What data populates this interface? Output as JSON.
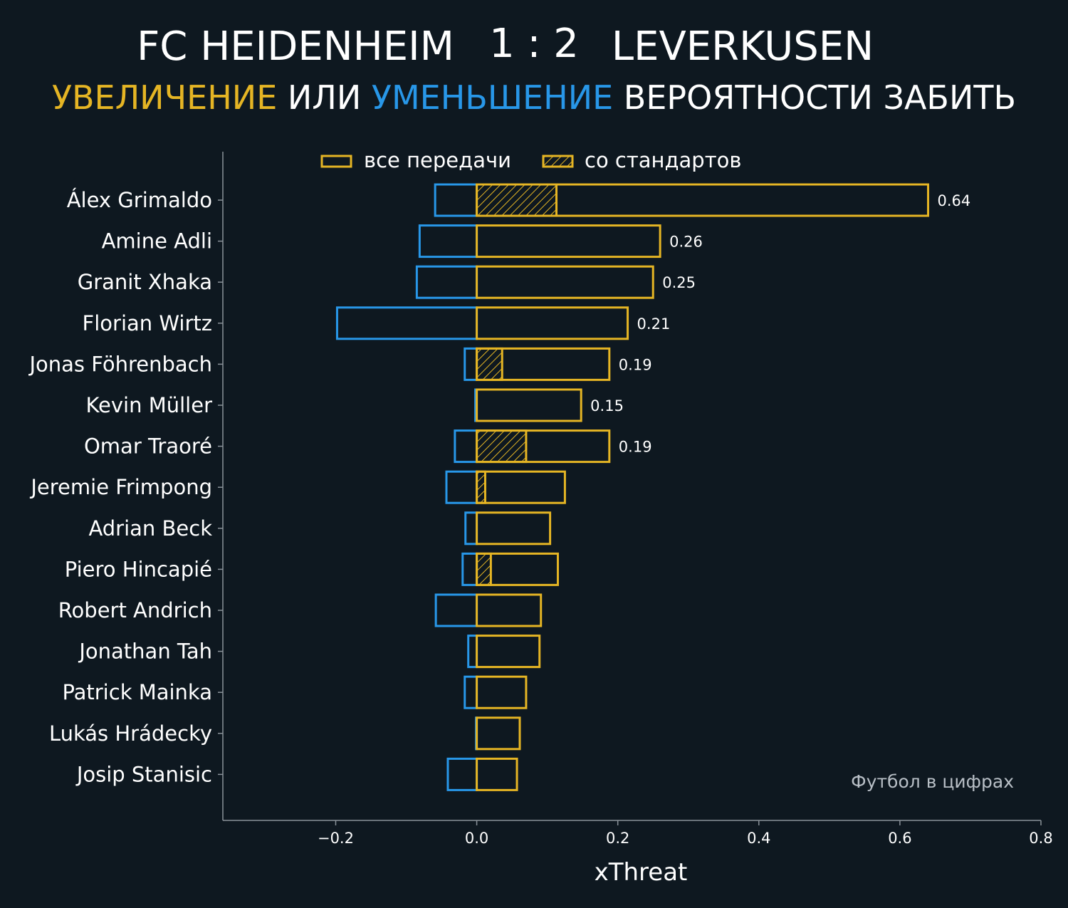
{
  "title": {
    "home": "FC HEIDENHEIM",
    "score": "1 : 2",
    "away": "LEVERKUSEN"
  },
  "subtitle": {
    "part1": "УВЕЛИЧЕНИЕ",
    "part2": " ИЛИ ",
    "part3": "УМЕНЬШЕНИЕ",
    "part4": " ВЕРОЯТНОСТИ ЗАБИТЬ"
  },
  "credit": "Футбол в цифрах",
  "colors": {
    "background": "#0e1820",
    "positive": "#e5b524",
    "negative": "#2897e8",
    "axis": "#8a9299",
    "text": "#ffffff"
  },
  "chart_data": {
    "type": "bar",
    "orientation": "horizontal",
    "xlabel": "xThreat",
    "xlim": [
      -0.36,
      0.8
    ],
    "xticks": [
      -0.2,
      0.0,
      0.2,
      0.4,
      0.6,
      0.8
    ],
    "xtick_labels": [
      "−0.2",
      "0.0",
      "0.2",
      "0.4",
      "0.6",
      "0.8"
    ],
    "legend": {
      "placement": "top",
      "items": [
        {
          "label": "все передачи",
          "style": "outline"
        },
        {
          "label": "со стандартов",
          "style": "hatched"
        }
      ]
    },
    "categories": [
      "Álex Grimaldo",
      "Amine Adli",
      "Granit Xhaka",
      "Florian Wirtz",
      "Jonas Föhrenbach",
      "Kevin Müller",
      "Omar Traoré",
      "Jeremie Frimpong",
      "Adrian Beck",
      "Piero Hincapié",
      "Robert Andrich",
      "Jonathan Tah",
      "Patrick Mainka",
      "Lukás Hrádecky",
      "Josip Stanisic"
    ],
    "series": [
      {
        "name": "все передачи",
        "values": [
          0.64,
          0.26,
          0.25,
          0.214,
          0.188,
          0.148,
          0.188,
          0.125,
          0.104,
          0.115,
          0.091,
          0.089,
          0.07,
          0.061,
          0.057
        ]
      },
      {
        "name": "",
        "values": [
          -0.059,
          -0.081,
          -0.085,
          -0.198,
          -0.017,
          -0.002,
          -0.031,
          -0.043,
          -0.016,
          -0.02,
          -0.058,
          -0.012,
          -0.017,
          -0.001,
          -0.041
        ]
      },
      {
        "name": "со стандартов",
        "values": [
          0.113,
          0,
          0,
          0,
          0.036,
          0,
          0.07,
          0.012,
          0,
          0.02,
          0,
          0,
          0,
          0,
          0
        ]
      }
    ],
    "data_labels": [
      "0.64",
      "0.26",
      "0.25",
      "0.21",
      "0.19",
      "0.15",
      "0.19",
      "",
      "",
      "",
      "",
      "",
      "",
      "",
      ""
    ]
  }
}
